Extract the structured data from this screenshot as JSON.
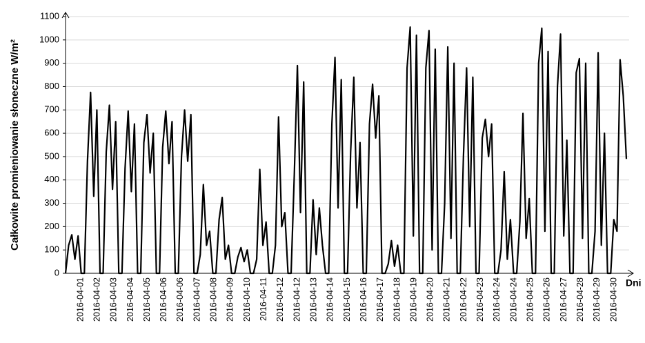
{
  "chart_data": {
    "type": "line",
    "ylabel": "Całkowite promieniowanie słoneczne W/m²",
    "xlabel": "Dni",
    "ylim": [
      0,
      1100
    ],
    "yticks": [
      0,
      100,
      200,
      300,
      400,
      500,
      600,
      700,
      800,
      900,
      1000,
      1100
    ],
    "grid": true,
    "color": "#000000",
    "xtick_labels": [
      "2016-04-01",
      "2016-04-02",
      "2016-04-03",
      "2016-04-04",
      "2016-04-05",
      "2016-04-06",
      "2016-04-06",
      "2016-04-07",
      "2016-04-08",
      "2016-04-09",
      "2016-04-10",
      "2016-04-11",
      "2016-04-12",
      "2016-04-12",
      "2016-04-13",
      "2016-04-14",
      "2016-04-15",
      "2016-04-16",
      "2016-04-17",
      "2016-04-18",
      "2016-04-19",
      "2016-04-20",
      "2016-04-21",
      "2016-04-22",
      "2016-04-23",
      "2016-04-24",
      "2016-04-24",
      "2016-04-25",
      "2016-04-26",
      "2016-04-27",
      "2016-04-28",
      "2016-04-29",
      "2016-04-30"
    ],
    "values": [
      0,
      120,
      165,
      60,
      160,
      0,
      0,
      480,
      775,
      330,
      700,
      0,
      0,
      520,
      720,
      360,
      650,
      0,
      0,
      450,
      695,
      350,
      640,
      0,
      0,
      560,
      680,
      430,
      600,
      0,
      0,
      540,
      695,
      470,
      650,
      0,
      0,
      500,
      700,
      480,
      680,
      0,
      0,
      80,
      380,
      120,
      180,
      0,
      0,
      230,
      325,
      60,
      120,
      0,
      0,
      70,
      110,
      50,
      100,
      0,
      0,
      60,
      445,
      120,
      220,
      0,
      0,
      120,
      670,
      200,
      260,
      0,
      0,
      420,
      890,
      260,
      820,
      0,
      0,
      315,
      80,
      280,
      120,
      0,
      0,
      640,
      925,
      280,
      830,
      0,
      0,
      520,
      840,
      280,
      560,
      0,
      0,
      640,
      810,
      580,
      760,
      0,
      0,
      40,
      140,
      30,
      120,
      0,
      0,
      880,
      1055,
      160,
      1020,
      0,
      0,
      880,
      1040,
      100,
      960,
      0,
      0,
      300,
      970,
      150,
      900,
      0,
      0,
      500,
      880,
      200,
      840,
      0,
      0,
      580,
      660,
      500,
      640,
      0,
      0,
      100,
      435,
      60,
      230,
      0,
      0,
      220,
      685,
      150,
      320,
      0,
      0,
      900,
      1050,
      180,
      950,
      0,
      0,
      800,
      1025,
      160,
      570,
      0,
      0,
      860,
      920,
      150,
      900,
      0,
      0,
      180,
      945,
      120,
      600,
      0,
      0,
      230,
      180,
      915,
      760,
      490
    ]
  }
}
